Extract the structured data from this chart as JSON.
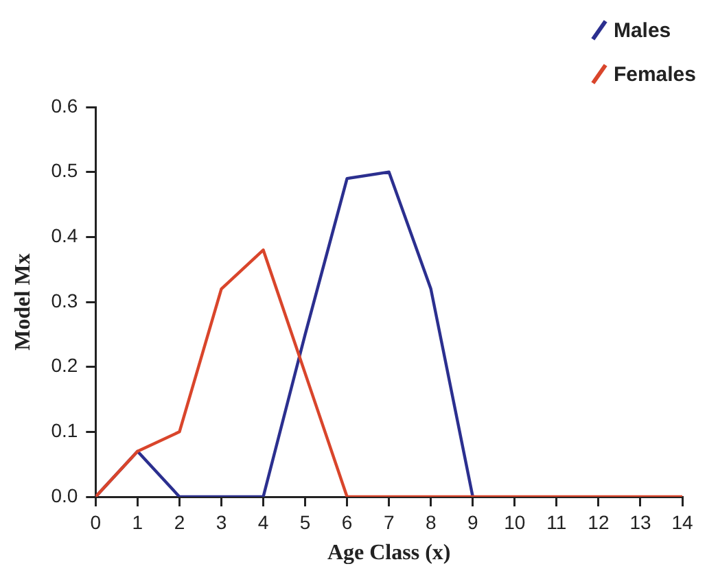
{
  "chart_data": {
    "type": "line",
    "xlabel": "Age Class (x)",
    "ylabel": "Model Mx",
    "x": [
      0,
      1,
      2,
      3,
      4,
      5,
      6,
      7,
      8,
      9,
      10,
      11,
      12,
      13,
      14
    ],
    "series": [
      {
        "name": "Males",
        "color": "#2b2f8f",
        "values": [
          0,
          0.07,
          0,
          0,
          0,
          0.25,
          0.49,
          0.5,
          0.32,
          0,
          null,
          null,
          null,
          null,
          null
        ]
      },
      {
        "name": "Females",
        "color": "#d9452b",
        "values": [
          0,
          0.07,
          0.1,
          0.32,
          0.38,
          0.19,
          0,
          0,
          0,
          0,
          0,
          0,
          0,
          0,
          0
        ]
      }
    ],
    "xlim": [
      0,
      14
    ],
    "xticks": [
      0,
      1,
      2,
      3,
      4,
      5,
      6,
      7,
      8,
      9,
      10,
      11,
      12,
      13,
      14
    ],
    "ylim": [
      0,
      0.6
    ],
    "yticks": [
      {
        "value": 0,
        "label": "0.0"
      },
      0.1,
      0.2,
      0.3,
      0.4,
      0.5,
      0.6
    ],
    "grid": false,
    "legend": "top right",
    "marker": "none",
    "line_style": "solid"
  }
}
